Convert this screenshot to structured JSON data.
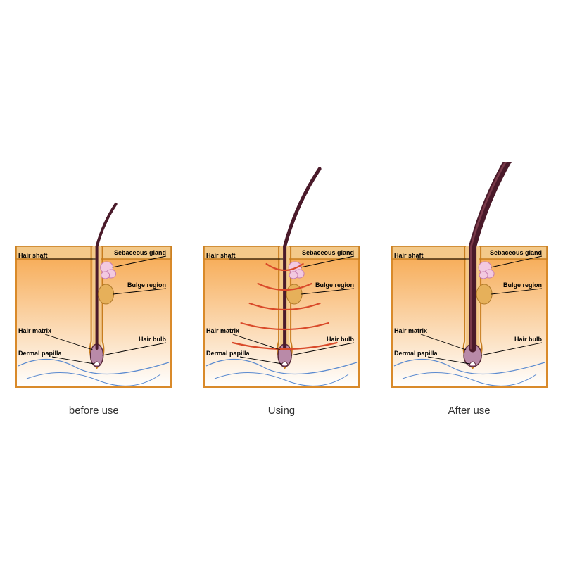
{
  "panels": [
    {
      "caption": "before use",
      "hair_thickness": 4,
      "hair_extend": 60,
      "show_waves": false
    },
    {
      "caption": "Using",
      "hair_thickness": 5,
      "hair_extend": 110,
      "show_waves": true
    },
    {
      "caption": "After use",
      "hair_thickness": 11,
      "hair_extend": 150,
      "show_waves": false
    }
  ],
  "labels": {
    "hair_shaft": "Hair shaft",
    "sebaceous_gland": "Sebaceous gland",
    "bulge_region": "Bulge region",
    "hair_matrix": "Hair matrix",
    "dermal_papilla": "Dermal papilla",
    "hair_bulb": "Hair bulb"
  },
  "colors": {
    "skin_top": "#f6a64b",
    "skin_bottom": "#ffffff",
    "skin_border": "#d98a2a",
    "epidermis": "#f3c98a",
    "epidermis_line": "#c77d1e",
    "hair": "#4a1a2a",
    "hair_highlight": "#7a3a4a",
    "bulb_fill": "#b98aa8",
    "bulb_stroke": "#5a2a3a",
    "gland_fill": "#f2c9e0",
    "gland_stroke": "#c77db0",
    "bulge_fill": "#e6b05a",
    "bulge_stroke": "#b07a2a",
    "vein": "#5a8ad0",
    "wave": "#d94a2a",
    "leader": "#000000"
  },
  "label_fontsize": 9,
  "caption_fontsize": 15
}
